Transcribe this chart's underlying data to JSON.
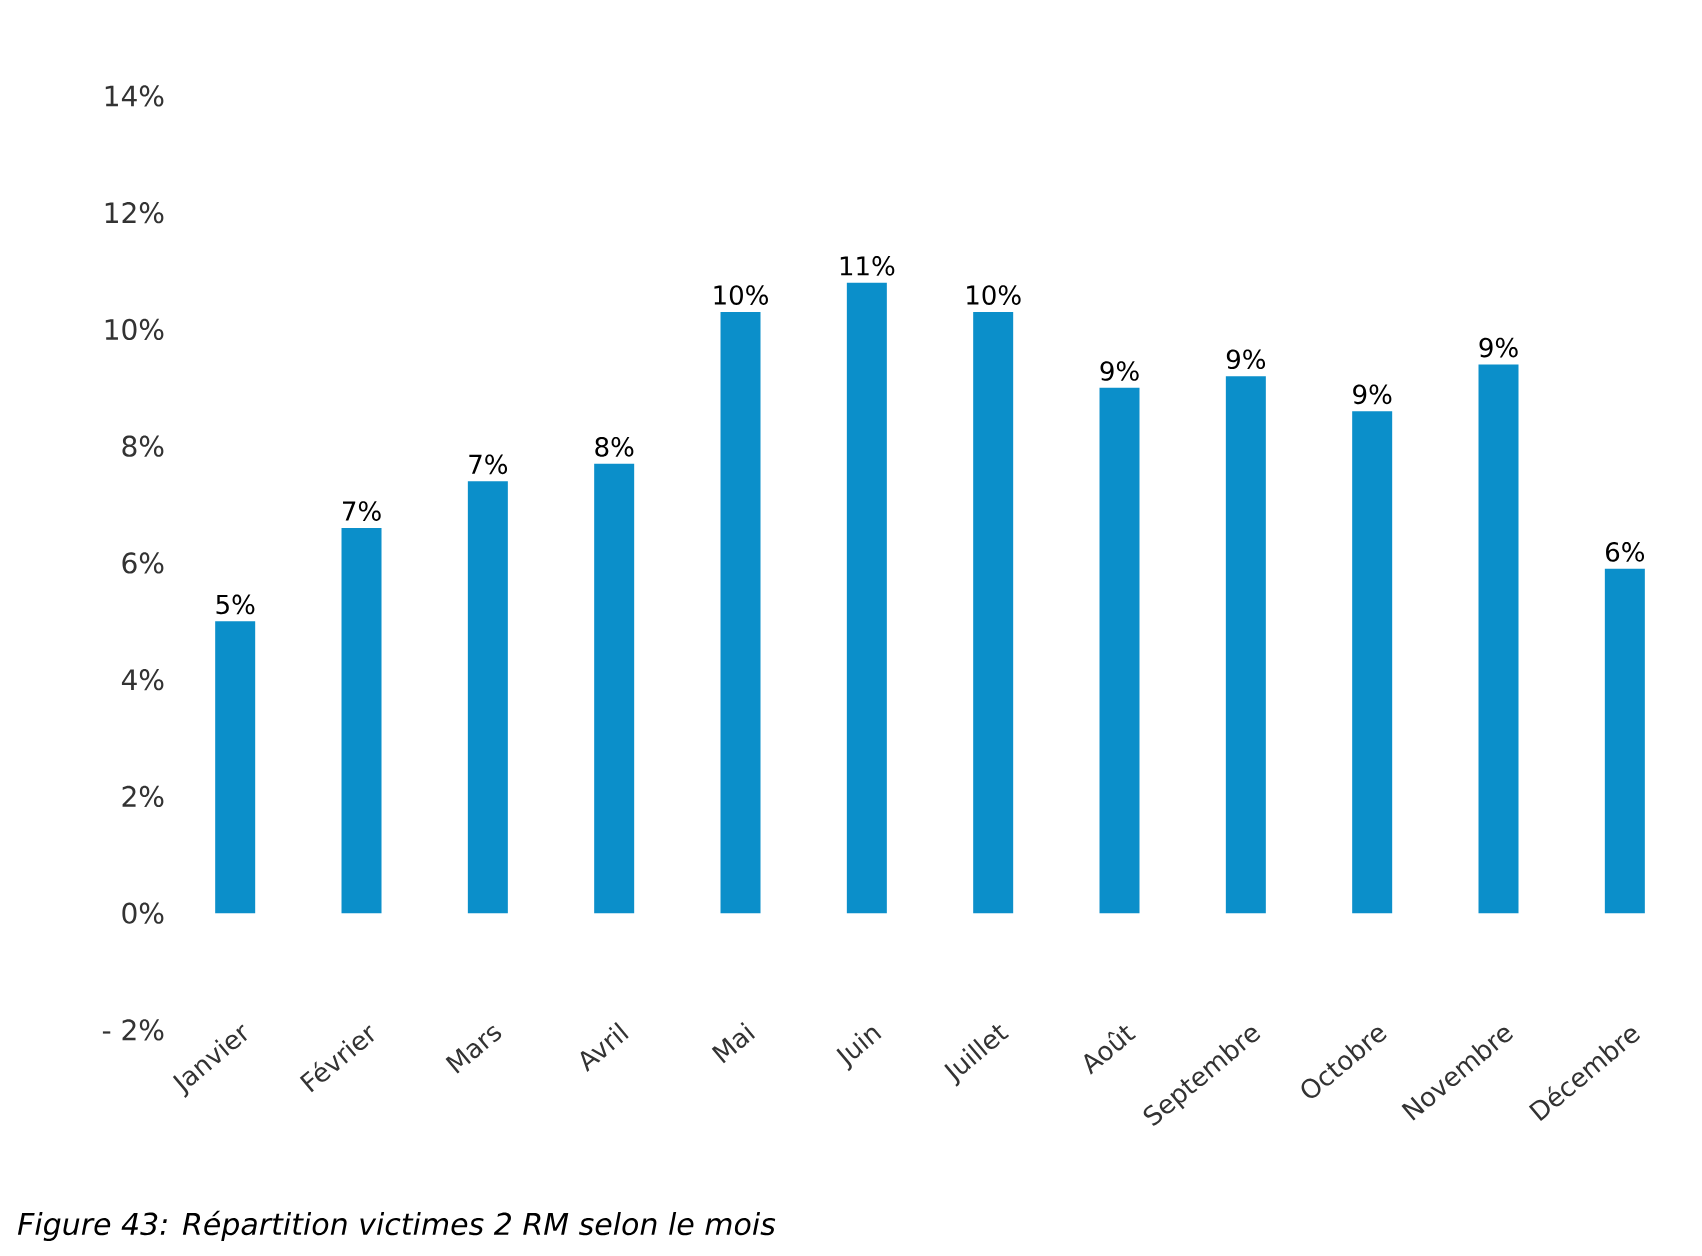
{
  "chart_data": {
    "type": "bar",
    "title": "Figure 43: Répartition victimes 2 RM selon le mois",
    "categories": [
      "Janvier",
      "Février",
      "Mars",
      "Avril",
      "Mai",
      "Juin",
      "Juillet",
      "Août",
      "Septembre",
      "Octobre",
      "Novembre",
      "Décembre"
    ],
    "values": [
      5.0,
      6.6,
      7.4,
      7.7,
      10.3,
      10.8,
      10.3,
      9.0,
      9.2,
      8.6,
      9.4,
      5.9
    ],
    "value_labels": [
      "5%",
      "7%",
      "7%",
      "8%",
      "10%",
      "11%",
      "10%",
      "9%",
      "9%",
      "9%",
      "9%",
      "6%"
    ],
    "color": "#0b8fca",
    "ylim": [
      -2,
      14
    ],
    "yticks": [
      {
        "value": -2,
        "label": "- 2%"
      },
      {
        "value": 0,
        "label": "0%"
      },
      {
        "value": 2,
        "label": "2%"
      },
      {
        "value": 4,
        "label": "4%"
      },
      {
        "value": 6,
        "label": "6%"
      },
      {
        "value": 8,
        "label": "8%"
      },
      {
        "value": 10,
        "label": "10%"
      },
      {
        "value": 12,
        "label": "12%"
      },
      {
        "value": 14,
        "label": "14%"
      }
    ]
  }
}
